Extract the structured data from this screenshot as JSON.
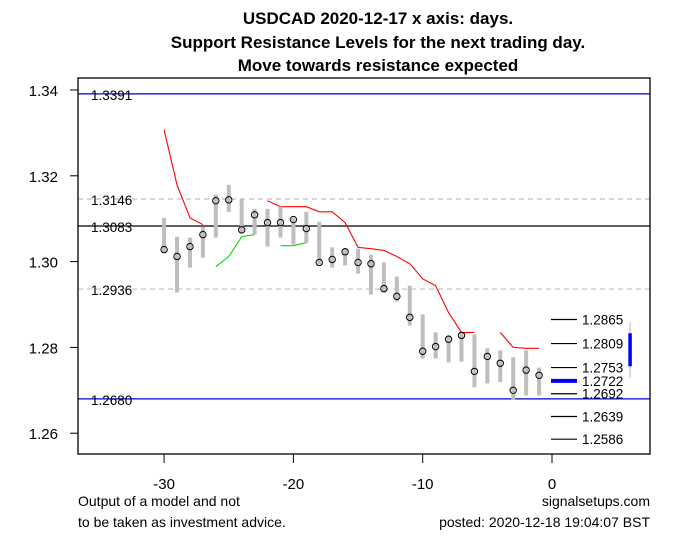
{
  "chart_data": {
    "type": "line",
    "title": [
      "USDCAD 2020-12-17 x axis: days.",
      "Support Resistance Levels for the next trading day.",
      "Move towards resistance expected"
    ],
    "xlabel": "",
    "ylabel": "",
    "xlim": [
      -36.5,
      7.5
    ],
    "ylim": [
      1.2554,
      1.3428
    ],
    "x_ticks": [
      -30,
      -20,
      -10,
      0
    ],
    "x_tick_labels": [
      "-30",
      "-20",
      "-10",
      "0"
    ],
    "y_ticks": [
      1.26,
      1.28,
      1.3,
      1.32,
      1.34
    ],
    "y_tick_labels": [
      "1.26",
      "1.28",
      "1.30",
      "1.32",
      "1.34"
    ],
    "grid": false,
    "candles": [
      {
        "day": -30,
        "high": 1.3102,
        "low": 1.3021,
        "close": 1.3028
      },
      {
        "day": -29,
        "high": 1.3058,
        "low": 1.2928,
        "close": 1.3012
      },
      {
        "day": -28,
        "high": 1.3056,
        "low": 1.2986,
        "close": 1.3035
      },
      {
        "day": -27,
        "high": 1.3081,
        "low": 1.3009,
        "close": 1.3063
      },
      {
        "day": -26,
        "high": 1.3156,
        "low": 1.3056,
        "close": 1.3142
      },
      {
        "day": -25,
        "high": 1.3179,
        "low": 1.3116,
        "close": 1.3144
      },
      {
        "day": -24,
        "high": 1.3147,
        "low": 1.3067,
        "close": 1.3074
      },
      {
        "day": -23,
        "high": 1.3123,
        "low": 1.3063,
        "close": 1.3109
      },
      {
        "day": -22,
        "high": 1.3123,
        "low": 1.3035,
        "close": 1.3091
      },
      {
        "day": -21,
        "high": 1.3128,
        "low": 1.3056,
        "close": 1.3091
      },
      {
        "day": -20,
        "high": 1.3102,
        "low": 1.304,
        "close": 1.3098
      },
      {
        "day": -19,
        "high": 1.3116,
        "low": 1.3044,
        "close": 1.3077
      },
      {
        "day": -18,
        "high": 1.3093,
        "low": 1.2993,
        "close": 1.2998
      },
      {
        "day": -17,
        "high": 1.3033,
        "low": 1.2986,
        "close": 1.3005
      },
      {
        "day": -16,
        "high": 1.303,
        "low": 1.2991,
        "close": 1.3023
      },
      {
        "day": -15,
        "high": 1.303,
        "low": 1.2972,
        "close": 1.2998
      },
      {
        "day": -14,
        "high": 1.3016,
        "low": 1.2923,
        "close": 1.2995
      },
      {
        "day": -13,
        "high": 1.2998,
        "low": 1.2928,
        "close": 1.2937
      },
      {
        "day": -12,
        "high": 1.2965,
        "low": 1.2907,
        "close": 1.2919
      },
      {
        "day": -11,
        "high": 1.2944,
        "low": 1.2851,
        "close": 1.287
      },
      {
        "day": -10,
        "high": 1.2877,
        "low": 1.2774,
        "close": 1.2791
      },
      {
        "day": -9,
        "high": 1.2835,
        "low": 1.2774,
        "close": 1.2802
      },
      {
        "day": -8,
        "high": 1.2828,
        "low": 1.2765,
        "close": 1.2819
      },
      {
        "day": -7,
        "high": 1.2835,
        "low": 1.2767,
        "close": 1.2828
      },
      {
        "day": -6,
        "high": 1.283,
        "low": 1.2707,
        "close": 1.2744
      },
      {
        "day": -5,
        "high": 1.2798,
        "low": 1.2716,
        "close": 1.2779
      },
      {
        "day": -4,
        "high": 1.2793,
        "low": 1.2719,
        "close": 1.2763
      },
      {
        "day": -3,
        "high": 1.2777,
        "low": 1.2679,
        "close": 1.27
      },
      {
        "day": -2,
        "high": 1.2793,
        "low": 1.2688,
        "close": 1.2747
      },
      {
        "day": -1,
        "high": 1.2753,
        "low": 1.2688,
        "close": 1.2735
      }
    ],
    "series": [
      {
        "name": "resistance-1",
        "color": "#ff0000",
        "x": [
          -30,
          -29,
          -28,
          -27
        ],
        "values": [
          1.3307,
          1.3179,
          1.3102,
          1.3086
        ]
      },
      {
        "name": "resistance-2",
        "color": "#ff0000",
        "x": [
          -22,
          -21,
          -20,
          -19,
          -18,
          -17,
          -16,
          -15,
          -14,
          -13,
          -12,
          -11,
          -10,
          -9,
          -8,
          -7,
          -6
        ],
        "values": [
          1.3142,
          1.3128,
          1.3128,
          1.3128,
          1.3116,
          1.3116,
          1.3091,
          1.3033,
          1.303,
          1.3026,
          1.3012,
          1.2995,
          1.296,
          1.2944,
          1.2881,
          1.2835,
          1.2835
        ]
      },
      {
        "name": "resistance-3",
        "color": "#ff0000",
        "x": [
          -4,
          -3,
          -2,
          -1
        ],
        "values": [
          1.2835,
          1.28,
          1.2798,
          1.2798
        ]
      },
      {
        "name": "support-1",
        "color": "#00dd00",
        "x": [
          -26,
          -25,
          -24,
          -23
        ],
        "values": [
          1.2988,
          1.3012,
          1.3058,
          1.3063
        ]
      },
      {
        "name": "support-2",
        "color": "#00dd00",
        "x": [
          -21,
          -20,
          -19
        ],
        "values": [
          1.3037,
          1.3037,
          1.3044
        ]
      }
    ],
    "hlines": [
      {
        "value": 1.3391,
        "label": "1.3391",
        "color": "#0000cc",
        "style": "solid"
      },
      {
        "value": 1.3146,
        "label": "1.3146",
        "color": "#bebebe",
        "style": "dashed"
      },
      {
        "value": 1.3083,
        "label": "1.3083",
        "color": "#000000",
        "style": "solid"
      },
      {
        "value": 1.2936,
        "label": "1.2936",
        "color": "#bebebe",
        "style": "dashed"
      },
      {
        "value": 1.268,
        "label": "1.2680",
        "color": "#0000cc",
        "style": "solid"
      }
    ],
    "next_day_levels": [
      {
        "value": 1.2865,
        "label": "1.2865",
        "highlight": false
      },
      {
        "value": 1.2809,
        "label": "1.2809",
        "highlight": false
      },
      {
        "value": 1.2753,
        "label": "1.2753",
        "highlight": false
      },
      {
        "value": 1.2722,
        "label": "1.2722",
        "highlight": true
      },
      {
        "value": 1.2692,
        "label": "1.2692",
        "highlight": false
      },
      {
        "value": 1.2639,
        "label": "1.2639",
        "highlight": false
      },
      {
        "value": 1.2586,
        "label": "1.2586",
        "highlight": false
      }
    ],
    "forecast_range": {
      "day": 6,
      "outer": [
        1.273,
        1.2858
      ],
      "inner": [
        1.2756,
        1.2833
      ]
    },
    "colors": {
      "candle": "#bebebe",
      "highlight": "#0000ff"
    }
  },
  "footer": {
    "left_line1": "Output of a model and not",
    "left_line2": "to be taken as investment advice.",
    "right_line1": "signalsetups.com",
    "right_line2": "posted: 2020-12-18 19:04:07 BST"
  }
}
